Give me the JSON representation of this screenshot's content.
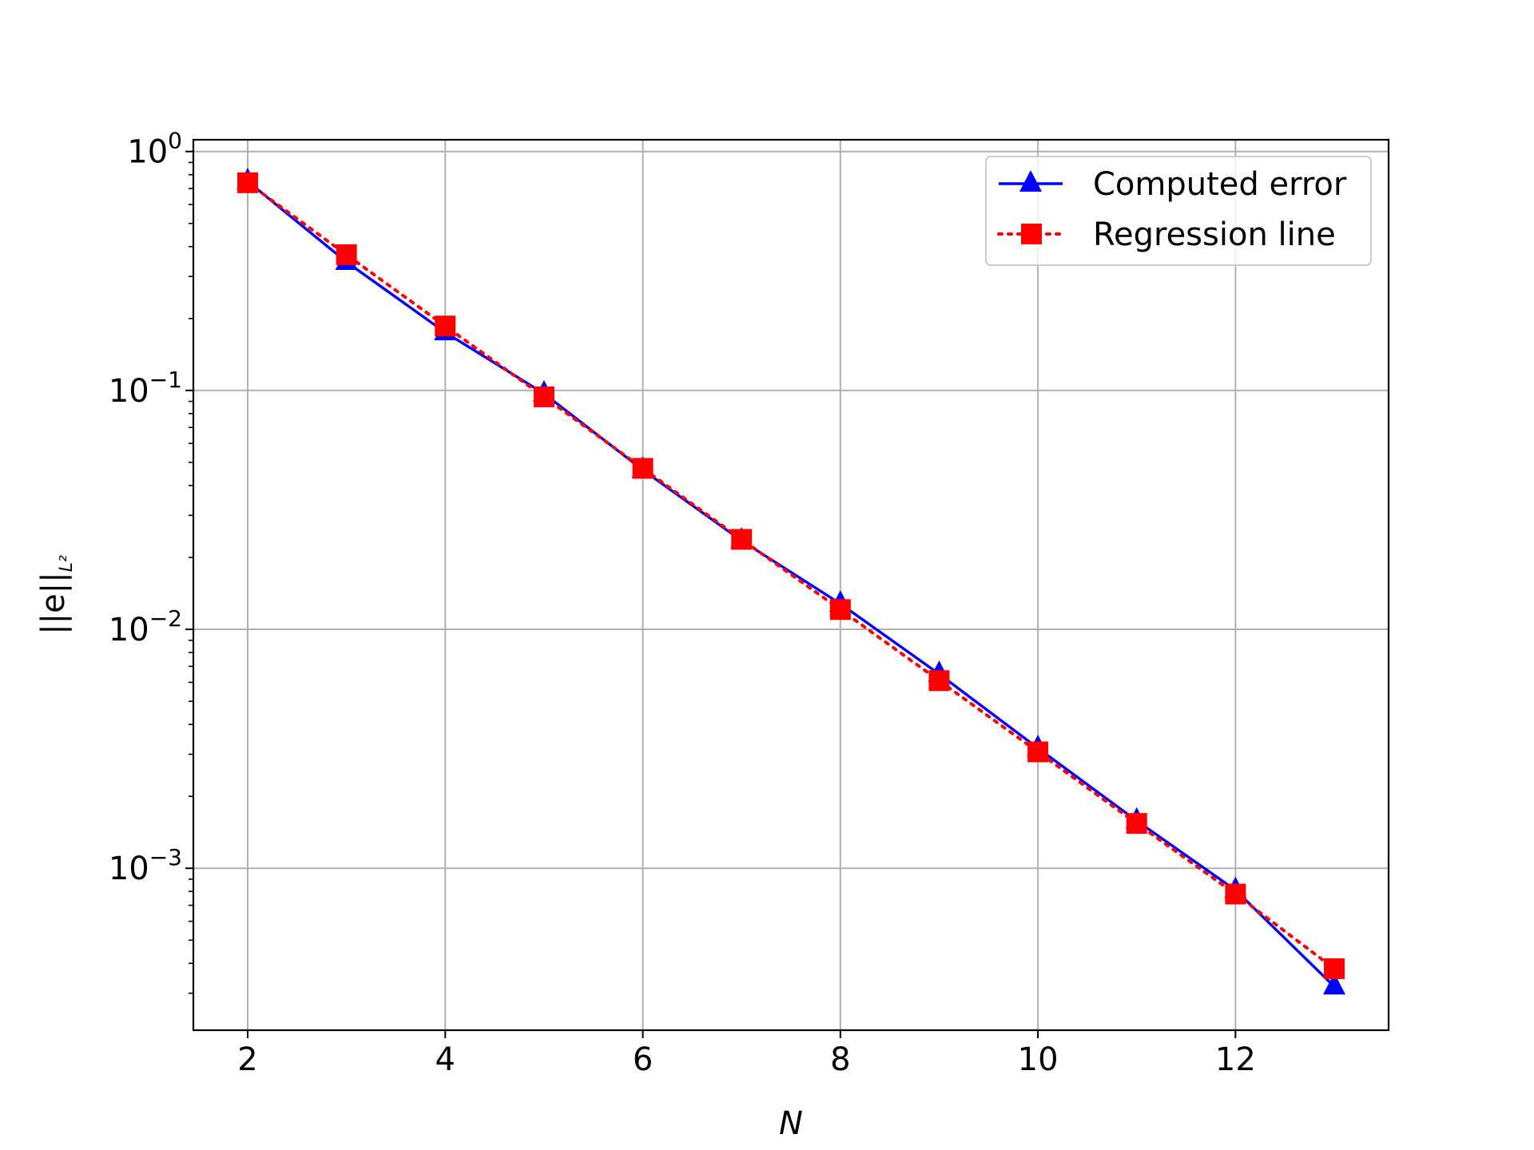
{
  "chart_data": {
    "type": "line",
    "title": "",
    "xlabel": "N",
    "ylabel_main": "||e||",
    "ylabel_sub": "L²",
    "xlim": [
      1.45,
      13.55
    ],
    "ylim": [
      0.00021,
      1.12
    ],
    "yscale": "log",
    "grid": true,
    "legend_position": "top-right",
    "x_ticks": [
      2,
      4,
      6,
      8,
      10,
      12
    ],
    "x_tick_labels": [
      "2",
      "4",
      "6",
      "8",
      "10",
      "12"
    ],
    "y_ticks": [
      1,
      0.1,
      0.01,
      0.001
    ],
    "y_tick_labels": [
      {
        "base": "10",
        "exp": "0"
      },
      {
        "base": "10",
        "exp": "−1"
      },
      {
        "base": "10",
        "exp": "−2"
      },
      {
        "base": "10",
        "exp": "−3"
      }
    ],
    "x": [
      2,
      3,
      4,
      5,
      6,
      7,
      8,
      9,
      10,
      11,
      12,
      13
    ],
    "series": [
      {
        "name": "Computed error",
        "color": "#0000ff",
        "line_style": "solid",
        "marker": "triangle-up",
        "values": [
          0.75,
          0.345,
          0.175,
          0.097,
          0.0465,
          0.0235,
          0.0128,
          0.0065,
          0.00318,
          0.00158,
          0.00081,
          0.00032
        ]
      },
      {
        "name": "Regression line",
        "color": "#ff0000",
        "line_style": "dotted",
        "marker": "square",
        "values": [
          0.74,
          0.37,
          0.186,
          0.094,
          0.0472,
          0.0238,
          0.0121,
          0.0061,
          0.00307,
          0.00154,
          0.00078,
          0.00038
        ]
      }
    ]
  }
}
